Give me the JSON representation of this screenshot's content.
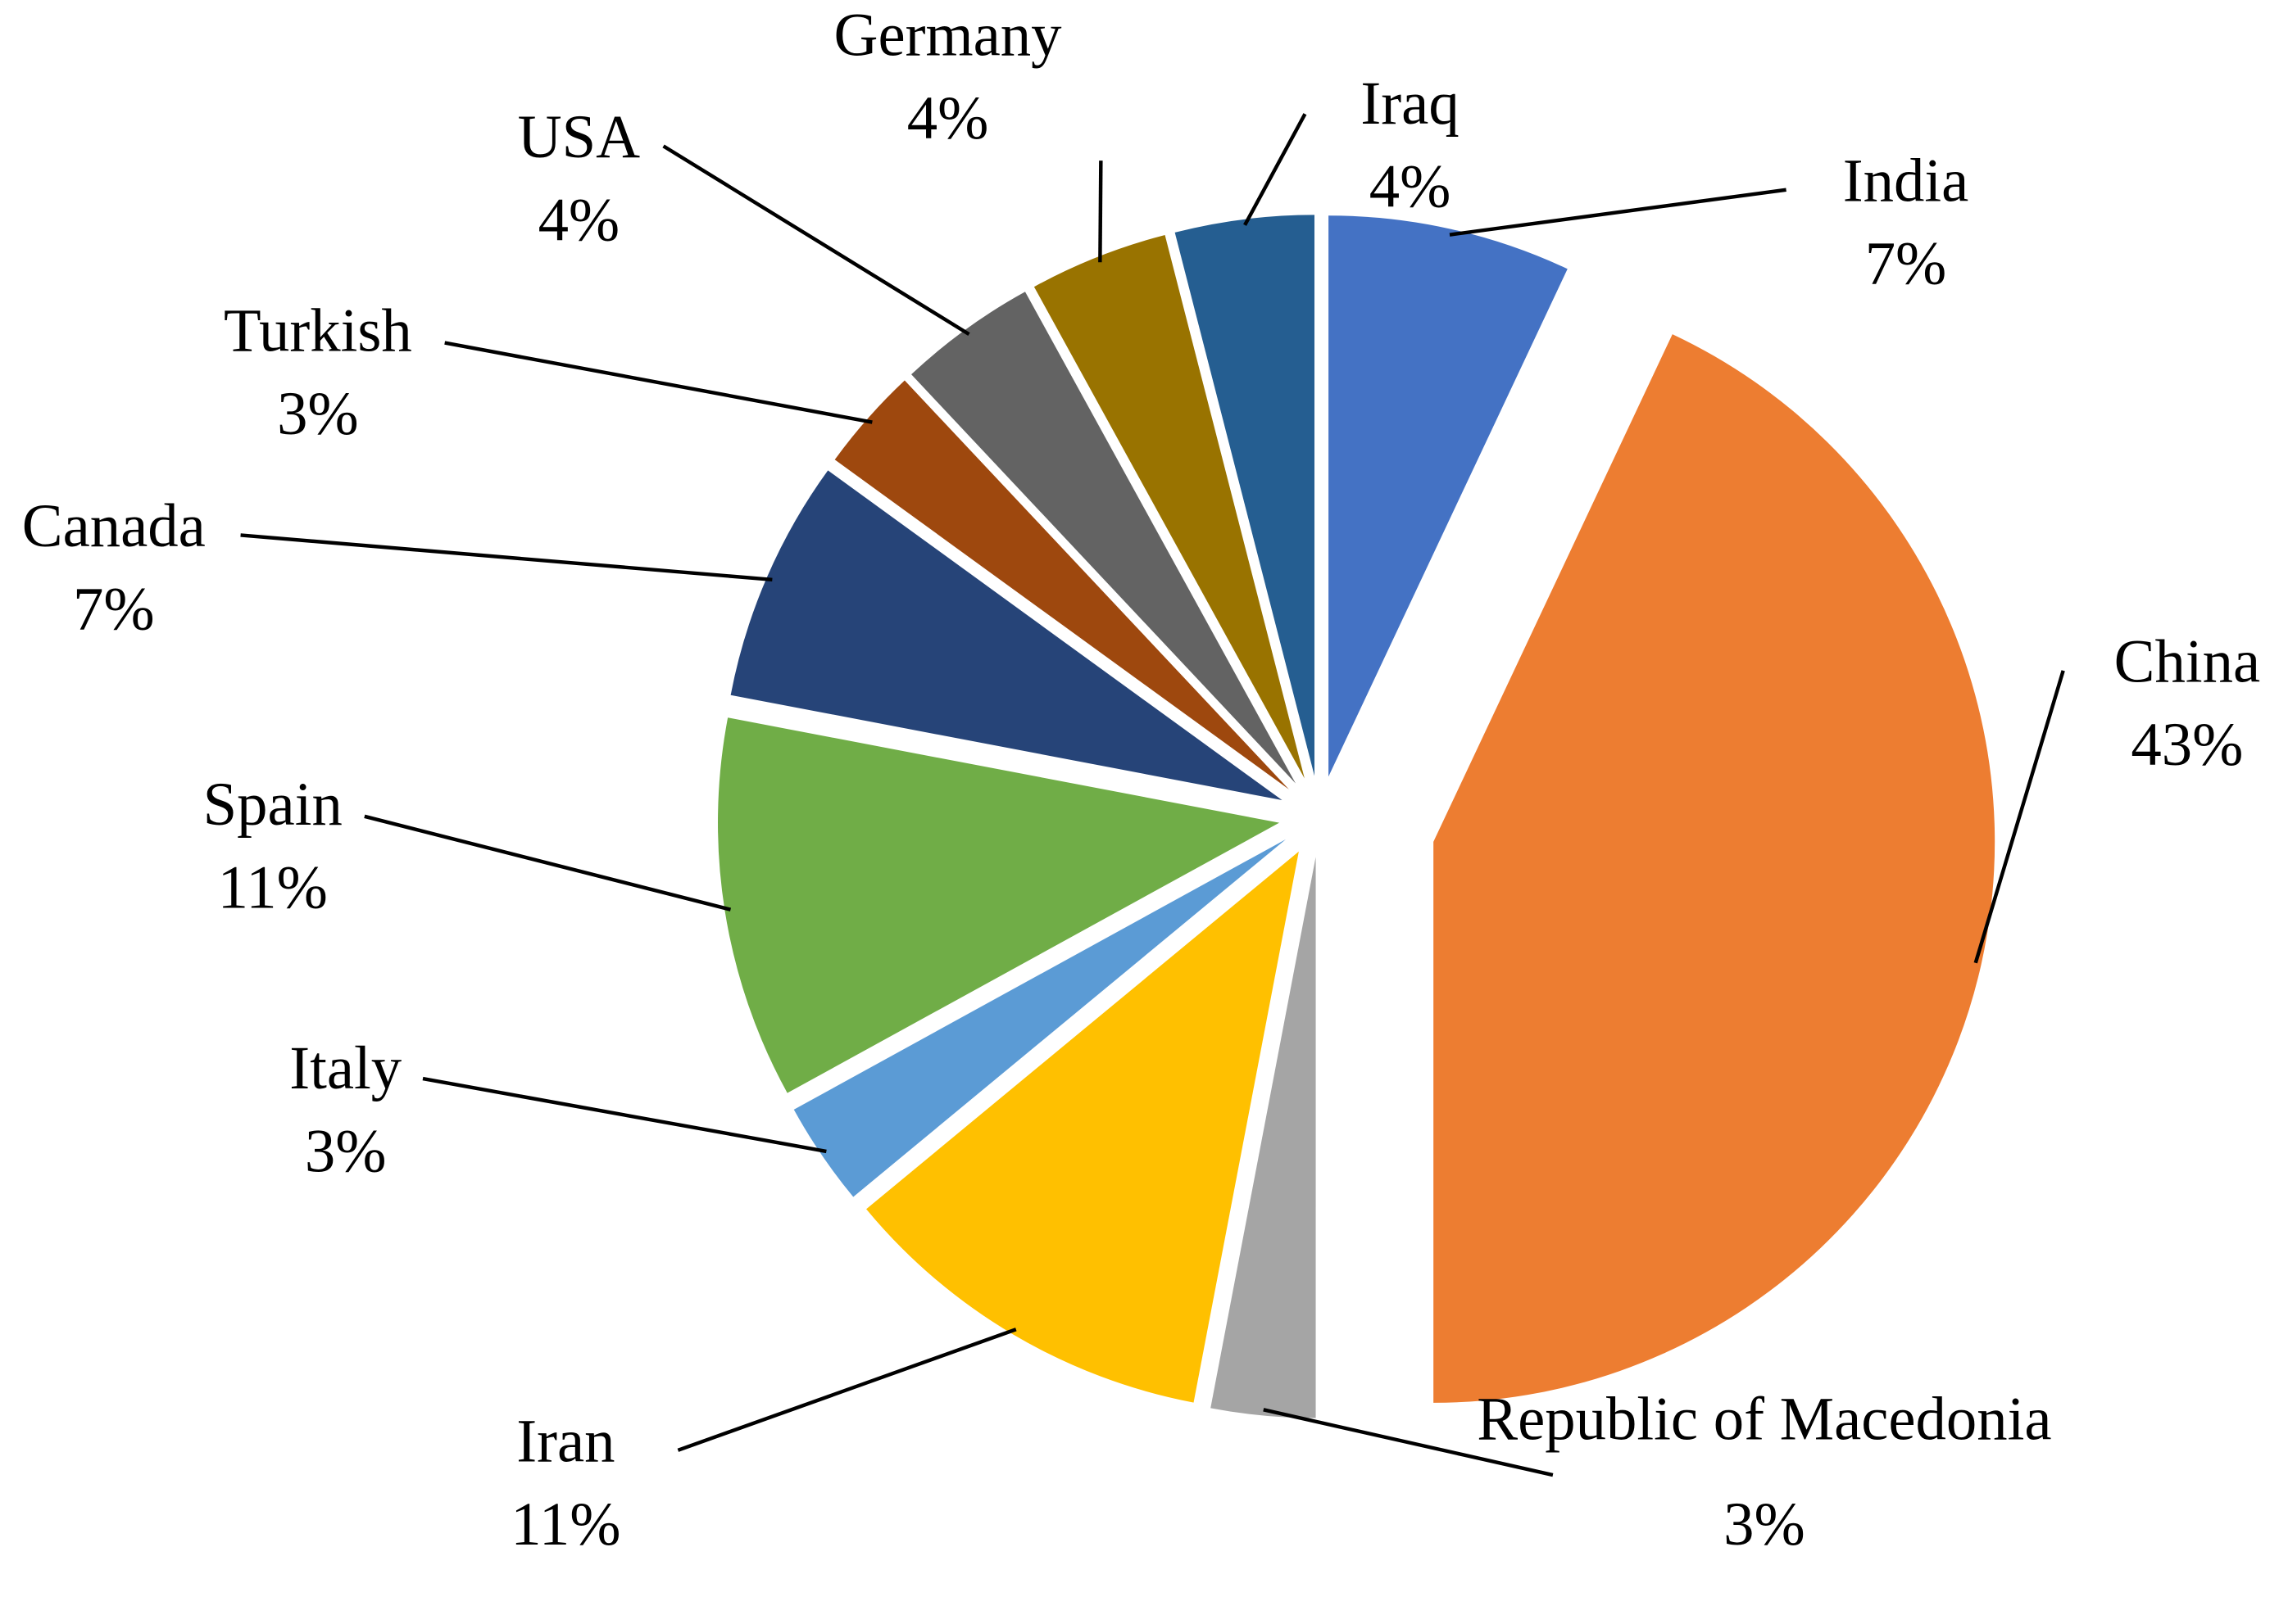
{
  "chart_data": {
    "type": "pie",
    "categories": [
      "India",
      "China",
      "Republic of Macedonia",
      "Iran",
      "Italy",
      "Spain",
      "Canada",
      "Turkish",
      "USA",
      "Germany",
      "Iraq"
    ],
    "values": [
      7,
      43,
      3,
      11,
      3,
      11,
      7,
      3,
      4,
      4,
      4
    ],
    "value_labels": [
      "7%",
      "43%",
      "3%",
      "11%",
      "3%",
      "11%",
      "7%",
      "3%",
      "4%",
      "4%",
      "4%"
    ],
    "colors": [
      "#4472c4",
      "#ed7d31",
      "#a5a5a5",
      "#ffc000",
      "#5b9bd5",
      "#70ad47",
      "#264478",
      "#9e480e",
      "#636363",
      "#997300",
      "#255e91"
    ]
  }
}
